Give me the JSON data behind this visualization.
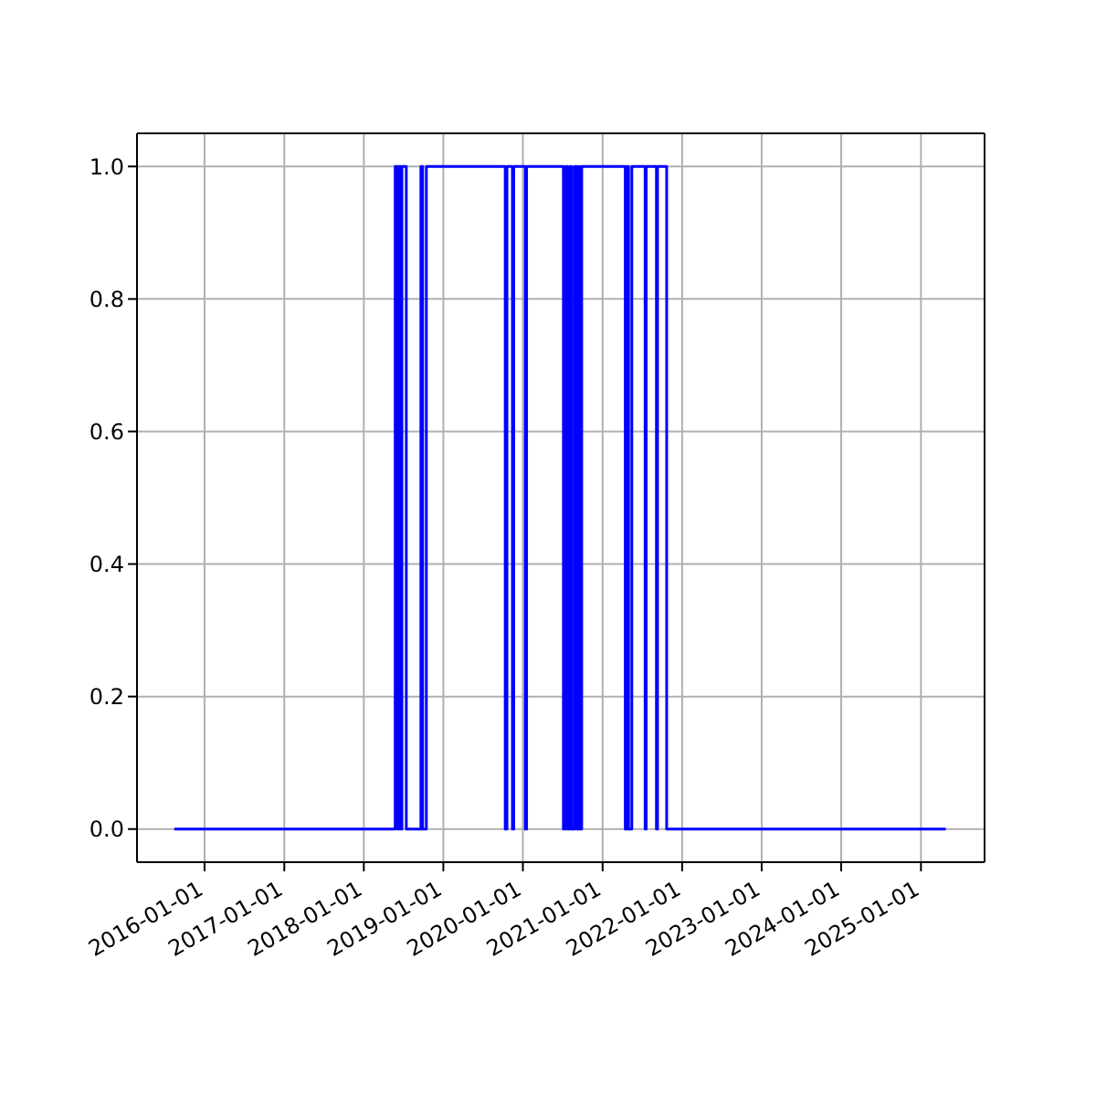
{
  "chart_data": {
    "type": "step",
    "x": [
      "2015-08-15",
      "2018-05-25",
      "2018-06-05",
      "2018-06-10",
      "2018-06-20",
      "2018-06-25",
      "2018-07-15",
      "2018-09-20",
      "2018-09-28",
      "2018-10-15",
      "2019-10-12",
      "2019-10-20",
      "2019-11-14",
      "2019-11-20",
      "2020-01-12",
      "2020-01-18",
      "2020-07-05",
      "2020-07-15",
      "2020-07-25",
      "2020-08-05",
      "2020-08-12",
      "2020-08-25",
      "2020-09-05",
      "2020-09-15",
      "2020-09-20",
      "2020-09-27",
      "2021-04-15",
      "2021-04-22",
      "2021-04-30",
      "2021-05-15",
      "2021-07-15",
      "2021-07-20",
      "2021-09-05",
      "2021-09-10",
      "2021-10-22",
      "2025-04-25"
    ],
    "series": [
      {
        "color": "#0000ff",
        "values": [
          0,
          1,
          0,
          1,
          0,
          1,
          0,
          1,
          0,
          1,
          0,
          1,
          0,
          1,
          0,
          1,
          0,
          1,
          0,
          1,
          0,
          1,
          0,
          1,
          0,
          1,
          0,
          1,
          0,
          1,
          0,
          1,
          0,
          1,
          0,
          0
        ]
      }
    ],
    "xlim": [
      "2015-02-25",
      "2025-10-20"
    ],
    "xticks": [
      "2016-01-01",
      "2017-01-01",
      "2018-01-01",
      "2019-01-01",
      "2020-01-01",
      "2021-01-01",
      "2022-01-01",
      "2023-01-01",
      "2024-01-01",
      "2025-01-01"
    ],
    "ylim": [
      -0.05,
      1.05
    ],
    "yticks": [
      {
        "value": 0,
        "label": "0.0"
      },
      {
        "value": 0.2,
        "label": "0.2"
      },
      {
        "value": 0.4,
        "label": "0.4"
      },
      {
        "value": 0.6,
        "label": "0.6"
      },
      {
        "value": 0.8,
        "label": "0.8"
      },
      {
        "value": 1,
        "label": "1.0"
      }
    ],
    "grid": true,
    "legend": false,
    "marker": "none",
    "line_style": "solid"
  }
}
